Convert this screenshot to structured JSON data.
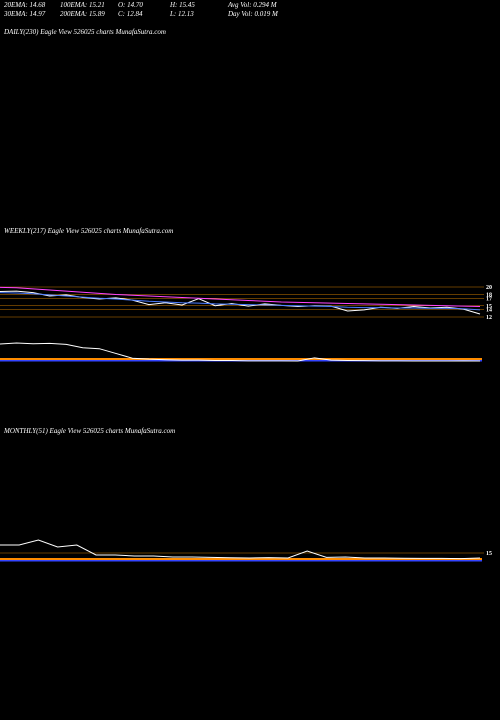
{
  "header": {
    "rows": [
      [
        "20EMA: 14.68",
        "100EMA: 15.21",
        "O: 14.70",
        "H: 15.45",
        "Avg Vol: 0.294  M"
      ],
      [
        "30EMA: 14.97",
        "200EMA: 15.89",
        "C: 12.84",
        "L: 12.13",
        "Day Vol: 0.019 M"
      ]
    ]
  },
  "daily": {
    "label": "DAILY(230) Eagle  View  526025 charts MunafaSutra.com"
  },
  "weekly": {
    "label": "WEEKLY(217) Eagle  View  526025 charts MunafaSutra.com",
    "type": "line",
    "price_levels": [
      20,
      18,
      17,
      15,
      14,
      12
    ],
    "series": [
      {
        "color": "#ffffff",
        "values": [
          18.8,
          18.9,
          18.5,
          17.6,
          17.9,
          17.2,
          16.8,
          17.1,
          16.5,
          15.3,
          15.8,
          15.2,
          16.9,
          15.0,
          15.6,
          14.9,
          15.5,
          15.1,
          14.8,
          15.0,
          14.9,
          13.6,
          13.9,
          14.6,
          14.3,
          14.8,
          14.4,
          14.6,
          14.1,
          12.8
        ]
      },
      {
        "color": "#ff44ff",
        "values": [
          19.9,
          19.8,
          19.5,
          19.2,
          18.9,
          18.6,
          18.3,
          18.0,
          17.8,
          17.6,
          17.4,
          17.2,
          17.0,
          16.8,
          16.6,
          16.4,
          16.2,
          16.0,
          15.9,
          15.8,
          15.7,
          15.6,
          15.5,
          15.4,
          15.3,
          15.2,
          15.1,
          15.0,
          14.9,
          14.8
        ]
      },
      {
        "color": "#4a7bff",
        "values": [
          18.5,
          18.4,
          18.2,
          17.9,
          17.6,
          17.3,
          17.0,
          16.8,
          16.5,
          16.2,
          16.0,
          15.8,
          15.7,
          15.5,
          15.4,
          15.3,
          15.2,
          15.1,
          15.0,
          14.9,
          14.8,
          14.6,
          14.5,
          14.5,
          14.4,
          14.4,
          14.3,
          14.3,
          14.2,
          13.9
        ]
      }
    ],
    "indicator": {
      "color": "#ffffff",
      "values": [
        95,
        100,
        96,
        98,
        93,
        75,
        70,
        45,
        20,
        15,
        12,
        10,
        10,
        8,
        8,
        6,
        6,
        6,
        5,
        22,
        10,
        8,
        7,
        6,
        6,
        5,
        5,
        5,
        6,
        5
      ]
    }
  },
  "monthly": {
    "label": "MONTHLY(51) Eagle  View  526025 charts MunafaSutra.com",
    "type": "line",
    "price_levels": [
      15
    ],
    "series": [
      {
        "color": "#ffffff",
        "values": [
          19,
          19,
          21.5,
          18,
          19,
          14,
          14,
          13.5,
          13.5,
          13,
          13,
          12.8,
          12.6,
          12.5,
          12.7,
          12.5,
          16,
          12.8,
          13,
          12.5,
          12.5,
          12.4,
          12.3,
          12.3,
          12.2,
          12.5
        ]
      }
    ]
  }
}
